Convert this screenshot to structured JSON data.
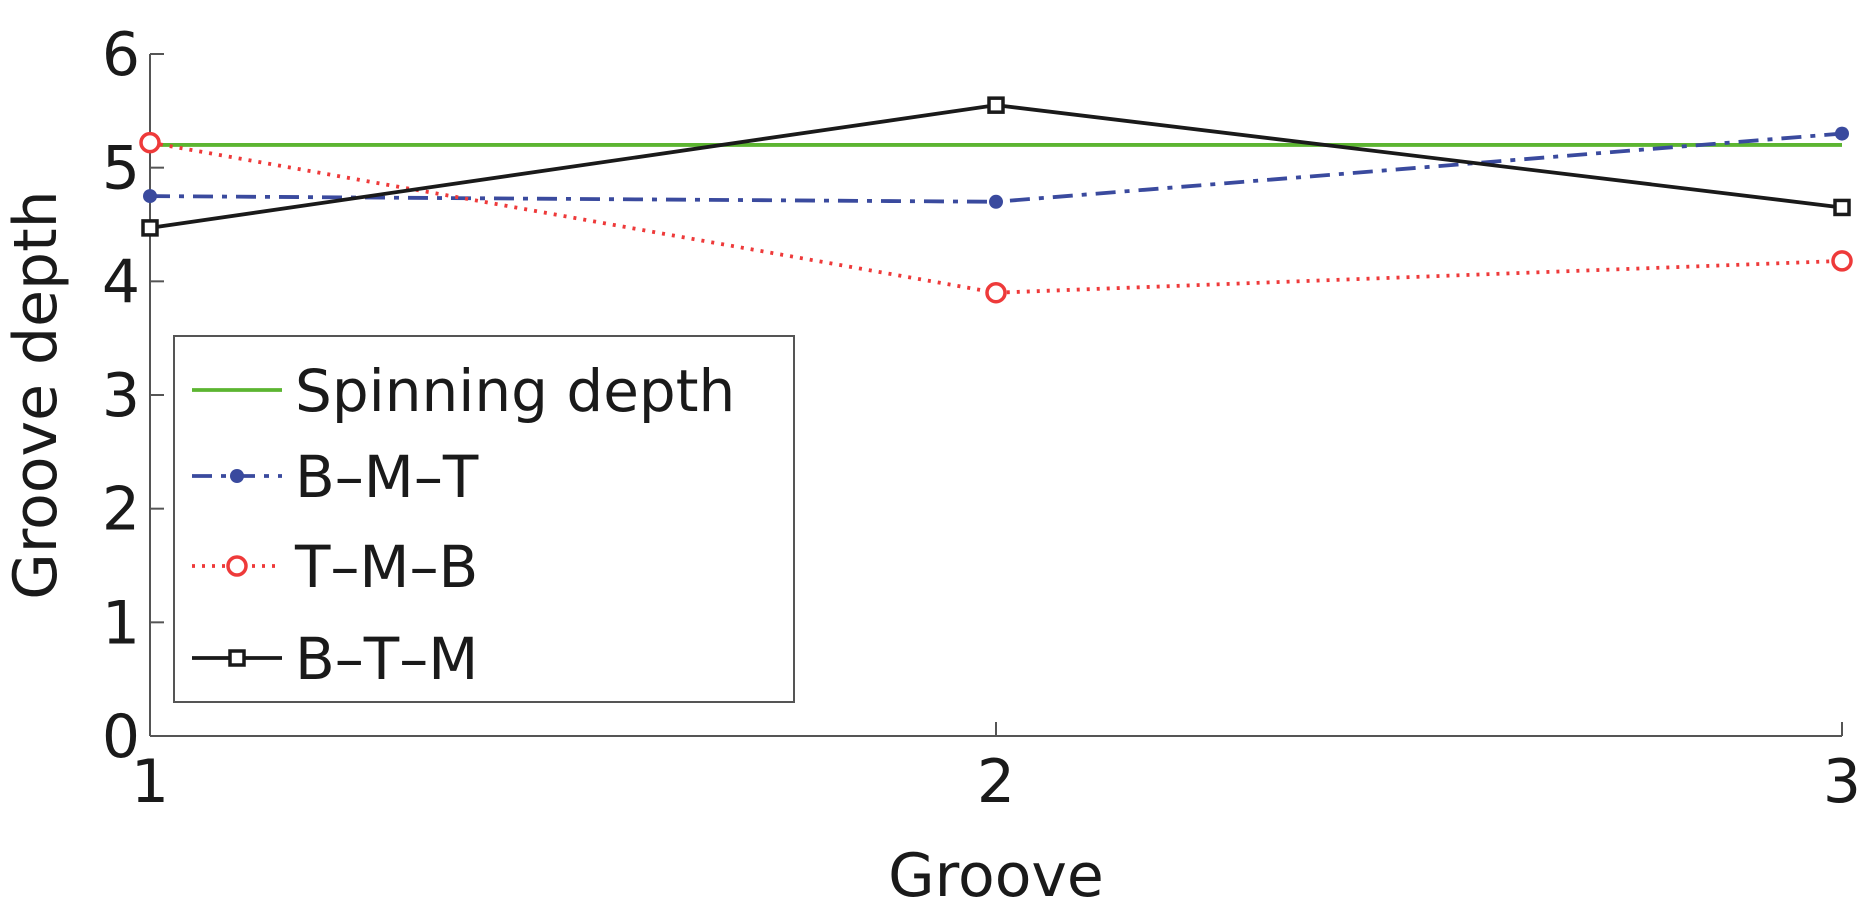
{
  "chart_data": {
    "type": "line",
    "x_label": "Groove",
    "y_label": "Groove depth",
    "x": [
      1,
      2,
      3
    ],
    "xlim": [
      1,
      3
    ],
    "xticks": [
      1,
      2,
      3
    ],
    "ylim": [
      0,
      6
    ],
    "yticks": [
      0,
      1,
      2,
      3,
      4,
      5,
      6
    ],
    "legend": "lower left",
    "series": [
      {
        "name": "Spinning depth",
        "color": "#5cb531",
        "line_style": "solid",
        "marker": "none",
        "values": [
          5.2,
          5.2,
          5.2
        ]
      },
      {
        "name": "B–M–T",
        "color": "#3a4a9e",
        "line_style": "dashdot",
        "marker": "dot",
        "values": [
          4.75,
          4.7,
          5.3
        ]
      },
      {
        "name": "T–M–B",
        "color": "#ee3a3a",
        "line_style": "dotted",
        "marker": "open-circle",
        "values": [
          5.22,
          3.9,
          4.18
        ]
      },
      {
        "name": "B–T–M",
        "color": "#1a1a1a",
        "line_style": "solid",
        "marker": "open-square",
        "values": [
          4.47,
          5.55,
          4.65
        ]
      }
    ]
  }
}
